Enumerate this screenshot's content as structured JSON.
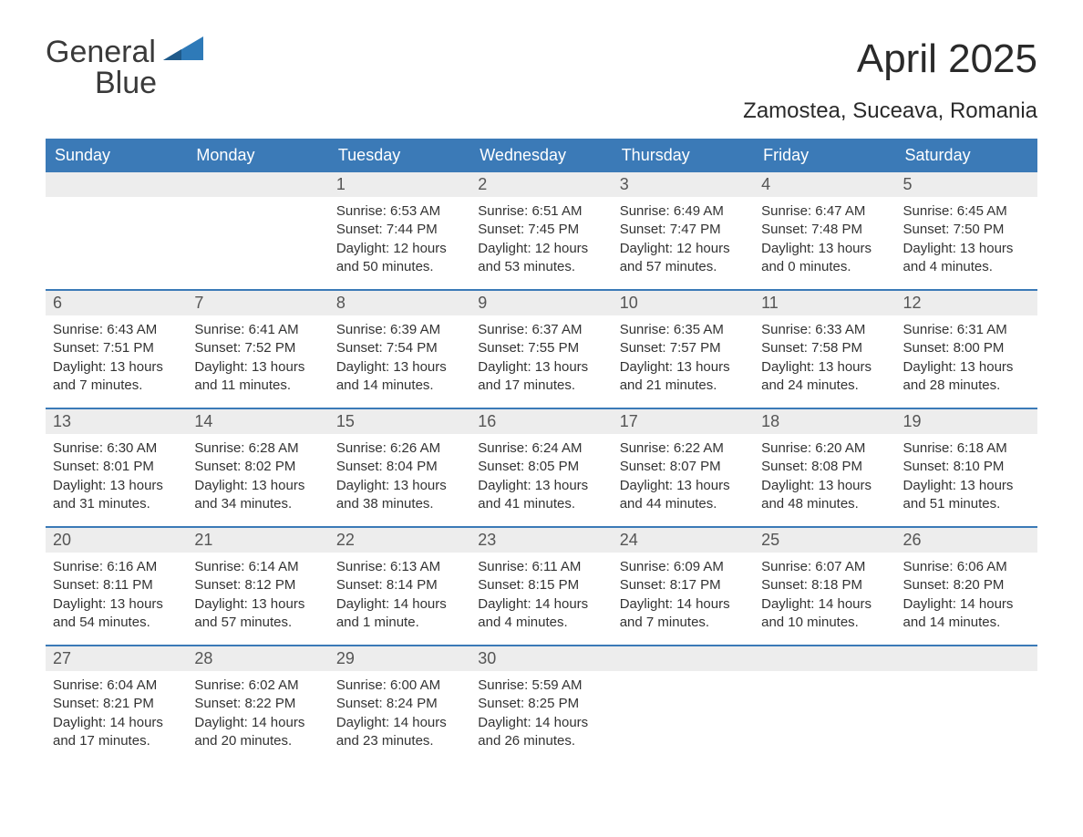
{
  "brand": {
    "word1": "General",
    "word2": "Blue",
    "text_color": "#3a3a3a",
    "accent_color": "#2e7ab8"
  },
  "title": "April 2025",
  "location": "Zamostea, Suceava, Romania",
  "colors": {
    "header_bg": "#3b7ab7",
    "header_text": "#ffffff",
    "daynum_bg": "#ededed",
    "daynum_text": "#555555",
    "border": "#3b7ab7",
    "body_text": "#333333",
    "page_bg": "#ffffff"
  },
  "day_names": [
    "Sunday",
    "Monday",
    "Tuesday",
    "Wednesday",
    "Thursday",
    "Friday",
    "Saturday"
  ],
  "weeks": [
    [
      null,
      null,
      {
        "n": "1",
        "sunrise": "Sunrise: 6:53 AM",
        "sunset": "Sunset: 7:44 PM",
        "d1": "Daylight: 12 hours",
        "d2": "and 50 minutes."
      },
      {
        "n": "2",
        "sunrise": "Sunrise: 6:51 AM",
        "sunset": "Sunset: 7:45 PM",
        "d1": "Daylight: 12 hours",
        "d2": "and 53 minutes."
      },
      {
        "n": "3",
        "sunrise": "Sunrise: 6:49 AM",
        "sunset": "Sunset: 7:47 PM",
        "d1": "Daylight: 12 hours",
        "d2": "and 57 minutes."
      },
      {
        "n": "4",
        "sunrise": "Sunrise: 6:47 AM",
        "sunset": "Sunset: 7:48 PM",
        "d1": "Daylight: 13 hours",
        "d2": "and 0 minutes."
      },
      {
        "n": "5",
        "sunrise": "Sunrise: 6:45 AM",
        "sunset": "Sunset: 7:50 PM",
        "d1": "Daylight: 13 hours",
        "d2": "and 4 minutes."
      }
    ],
    [
      {
        "n": "6",
        "sunrise": "Sunrise: 6:43 AM",
        "sunset": "Sunset: 7:51 PM",
        "d1": "Daylight: 13 hours",
        "d2": "and 7 minutes."
      },
      {
        "n": "7",
        "sunrise": "Sunrise: 6:41 AM",
        "sunset": "Sunset: 7:52 PM",
        "d1": "Daylight: 13 hours",
        "d2": "and 11 minutes."
      },
      {
        "n": "8",
        "sunrise": "Sunrise: 6:39 AM",
        "sunset": "Sunset: 7:54 PM",
        "d1": "Daylight: 13 hours",
        "d2": "and 14 minutes."
      },
      {
        "n": "9",
        "sunrise": "Sunrise: 6:37 AM",
        "sunset": "Sunset: 7:55 PM",
        "d1": "Daylight: 13 hours",
        "d2": "and 17 minutes."
      },
      {
        "n": "10",
        "sunrise": "Sunrise: 6:35 AM",
        "sunset": "Sunset: 7:57 PM",
        "d1": "Daylight: 13 hours",
        "d2": "and 21 minutes."
      },
      {
        "n": "11",
        "sunrise": "Sunrise: 6:33 AM",
        "sunset": "Sunset: 7:58 PM",
        "d1": "Daylight: 13 hours",
        "d2": "and 24 minutes."
      },
      {
        "n": "12",
        "sunrise": "Sunrise: 6:31 AM",
        "sunset": "Sunset: 8:00 PM",
        "d1": "Daylight: 13 hours",
        "d2": "and 28 minutes."
      }
    ],
    [
      {
        "n": "13",
        "sunrise": "Sunrise: 6:30 AM",
        "sunset": "Sunset: 8:01 PM",
        "d1": "Daylight: 13 hours",
        "d2": "and 31 minutes."
      },
      {
        "n": "14",
        "sunrise": "Sunrise: 6:28 AM",
        "sunset": "Sunset: 8:02 PM",
        "d1": "Daylight: 13 hours",
        "d2": "and 34 minutes."
      },
      {
        "n": "15",
        "sunrise": "Sunrise: 6:26 AM",
        "sunset": "Sunset: 8:04 PM",
        "d1": "Daylight: 13 hours",
        "d2": "and 38 minutes."
      },
      {
        "n": "16",
        "sunrise": "Sunrise: 6:24 AM",
        "sunset": "Sunset: 8:05 PM",
        "d1": "Daylight: 13 hours",
        "d2": "and 41 minutes."
      },
      {
        "n": "17",
        "sunrise": "Sunrise: 6:22 AM",
        "sunset": "Sunset: 8:07 PM",
        "d1": "Daylight: 13 hours",
        "d2": "and 44 minutes."
      },
      {
        "n": "18",
        "sunrise": "Sunrise: 6:20 AM",
        "sunset": "Sunset: 8:08 PM",
        "d1": "Daylight: 13 hours",
        "d2": "and 48 minutes."
      },
      {
        "n": "19",
        "sunrise": "Sunrise: 6:18 AM",
        "sunset": "Sunset: 8:10 PM",
        "d1": "Daylight: 13 hours",
        "d2": "and 51 minutes."
      }
    ],
    [
      {
        "n": "20",
        "sunrise": "Sunrise: 6:16 AM",
        "sunset": "Sunset: 8:11 PM",
        "d1": "Daylight: 13 hours",
        "d2": "and 54 minutes."
      },
      {
        "n": "21",
        "sunrise": "Sunrise: 6:14 AM",
        "sunset": "Sunset: 8:12 PM",
        "d1": "Daylight: 13 hours",
        "d2": "and 57 minutes."
      },
      {
        "n": "22",
        "sunrise": "Sunrise: 6:13 AM",
        "sunset": "Sunset: 8:14 PM",
        "d1": "Daylight: 14 hours",
        "d2": "and 1 minute."
      },
      {
        "n": "23",
        "sunrise": "Sunrise: 6:11 AM",
        "sunset": "Sunset: 8:15 PM",
        "d1": "Daylight: 14 hours",
        "d2": "and 4 minutes."
      },
      {
        "n": "24",
        "sunrise": "Sunrise: 6:09 AM",
        "sunset": "Sunset: 8:17 PM",
        "d1": "Daylight: 14 hours",
        "d2": "and 7 minutes."
      },
      {
        "n": "25",
        "sunrise": "Sunrise: 6:07 AM",
        "sunset": "Sunset: 8:18 PM",
        "d1": "Daylight: 14 hours",
        "d2": "and 10 minutes."
      },
      {
        "n": "26",
        "sunrise": "Sunrise: 6:06 AM",
        "sunset": "Sunset: 8:20 PM",
        "d1": "Daylight: 14 hours",
        "d2": "and 14 minutes."
      }
    ],
    [
      {
        "n": "27",
        "sunrise": "Sunrise: 6:04 AM",
        "sunset": "Sunset: 8:21 PM",
        "d1": "Daylight: 14 hours",
        "d2": "and 17 minutes."
      },
      {
        "n": "28",
        "sunrise": "Sunrise: 6:02 AM",
        "sunset": "Sunset: 8:22 PM",
        "d1": "Daylight: 14 hours",
        "d2": "and 20 minutes."
      },
      {
        "n": "29",
        "sunrise": "Sunrise: 6:00 AM",
        "sunset": "Sunset: 8:24 PM",
        "d1": "Daylight: 14 hours",
        "d2": "and 23 minutes."
      },
      {
        "n": "30",
        "sunrise": "Sunrise: 5:59 AM",
        "sunset": "Sunset: 8:25 PM",
        "d1": "Daylight: 14 hours",
        "d2": "and 26 minutes."
      },
      null,
      null,
      null
    ]
  ]
}
